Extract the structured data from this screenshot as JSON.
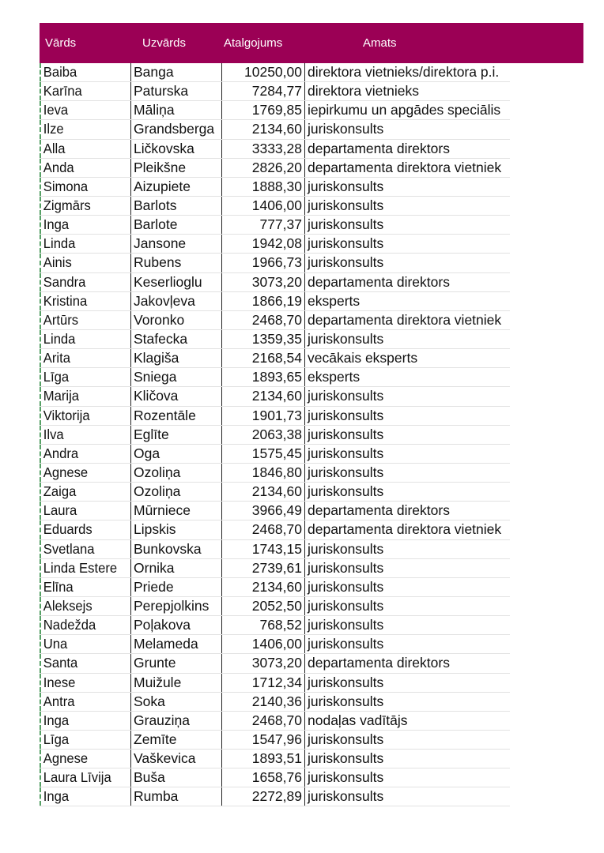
{
  "header": {
    "color": "#9b0055",
    "columns": [
      "Vārds",
      "Uzvārds",
      "Atalgojums",
      "Amats"
    ]
  },
  "rows": [
    [
      "Baiba",
      "Banga",
      "10250,00",
      "direktora vietnieks/direktora p.i."
    ],
    [
      "Karīna",
      "Paturska",
      "7284,77",
      "direktora vietnieks"
    ],
    [
      "Ieva",
      "Māliņa",
      "1769,85",
      "iepirkumu un apgādes speciālis"
    ],
    [
      "Ilze",
      "Grandsberga",
      "2134,60",
      "juriskonsults"
    ],
    [
      "Alla",
      "Ličkovska",
      "3333,28",
      "departamenta direktors"
    ],
    [
      "Anda",
      "Pleikšne",
      "2826,20",
      "departamenta direktora vietniek"
    ],
    [
      "Simona",
      "Aizupiete",
      "1888,30",
      "juriskonsults"
    ],
    [
      "Zigmārs",
      "Barlots",
      "1406,00",
      "juriskonsults"
    ],
    [
      "Inga",
      "Barlote",
      "777,37",
      "juriskonsults"
    ],
    [
      "Linda",
      "Jansone",
      "1942,08",
      "juriskonsults"
    ],
    [
      "Ainis",
      "Rubens",
      "1966,73",
      "juriskonsults"
    ],
    [
      "Sandra",
      "Keserlioglu",
      "3073,20",
      "departamenta direktors"
    ],
    [
      "Kristina",
      "Jakovļeva",
      "1866,19",
      "eksperts"
    ],
    [
      "Artūrs",
      "Voronko",
      "2468,70",
      "departamenta direktora vietniek"
    ],
    [
      "Linda",
      "Stafecka",
      "1359,35",
      "juriskonsults"
    ],
    [
      "Arita",
      "Klagiša",
      "2168,54",
      "vecākais eksperts"
    ],
    [
      "Līga",
      "Sniega",
      "1893,65",
      "eksperts"
    ],
    [
      "Marija",
      "Kličova",
      "2134,60",
      "juriskonsults"
    ],
    [
      "Viktorija",
      "Rozentāle",
      "1901,73",
      "juriskonsults"
    ],
    [
      "Ilva",
      "Eglīte",
      "2063,38",
      "juriskonsults"
    ],
    [
      "Andra",
      "Oga",
      "1575,45",
      "juriskonsults"
    ],
    [
      "Agnese",
      "Ozoliņa",
      "1846,80",
      "juriskonsults"
    ],
    [
      "Zaiga",
      "Ozoliņa",
      "2134,60",
      "juriskonsults"
    ],
    [
      "Laura",
      "Mūrniece",
      "3966,49",
      "departamenta direktors"
    ],
    [
      "Eduards",
      "Lipskis",
      "2468,70",
      "departamenta direktora vietniek"
    ],
    [
      "Svetlana",
      "Bunkovska",
      "1743,15",
      "juriskonsults"
    ],
    [
      "Linda Estere",
      "Ornika",
      "2739,61",
      "juriskonsults"
    ],
    [
      "Elīna",
      "Priede",
      "2134,60",
      "juriskonsults"
    ],
    [
      "Aleksejs",
      "Perepjolkins",
      "2052,50",
      "juriskonsults"
    ],
    [
      "Nadežda",
      "Poļakova",
      "768,52",
      "juriskonsults"
    ],
    [
      "Una",
      "Melameda",
      "1406,00",
      "juriskonsults"
    ],
    [
      "Santa",
      "Grunte",
      "3073,20",
      "departamenta direktors"
    ],
    [
      "Inese",
      "Muižule",
      "1712,34",
      "juriskonsults"
    ],
    [
      "Antra",
      "Soka",
      "2140,36",
      "juriskonsults"
    ],
    [
      "Inga",
      "Grauziņa",
      "2468,70",
      "nodaļas vadītājs"
    ],
    [
      "Līga",
      "Zemīte",
      "1547,96",
      "juriskonsults"
    ],
    [
      "Agnese",
      "Vaškevica",
      "1893,51",
      "juriskonsults"
    ],
    [
      "Laura Līvija",
      "Buša",
      "1658,76",
      "juriskonsults"
    ],
    [
      "Inga",
      "Rumba",
      "2272,89",
      "juriskonsults"
    ]
  ]
}
